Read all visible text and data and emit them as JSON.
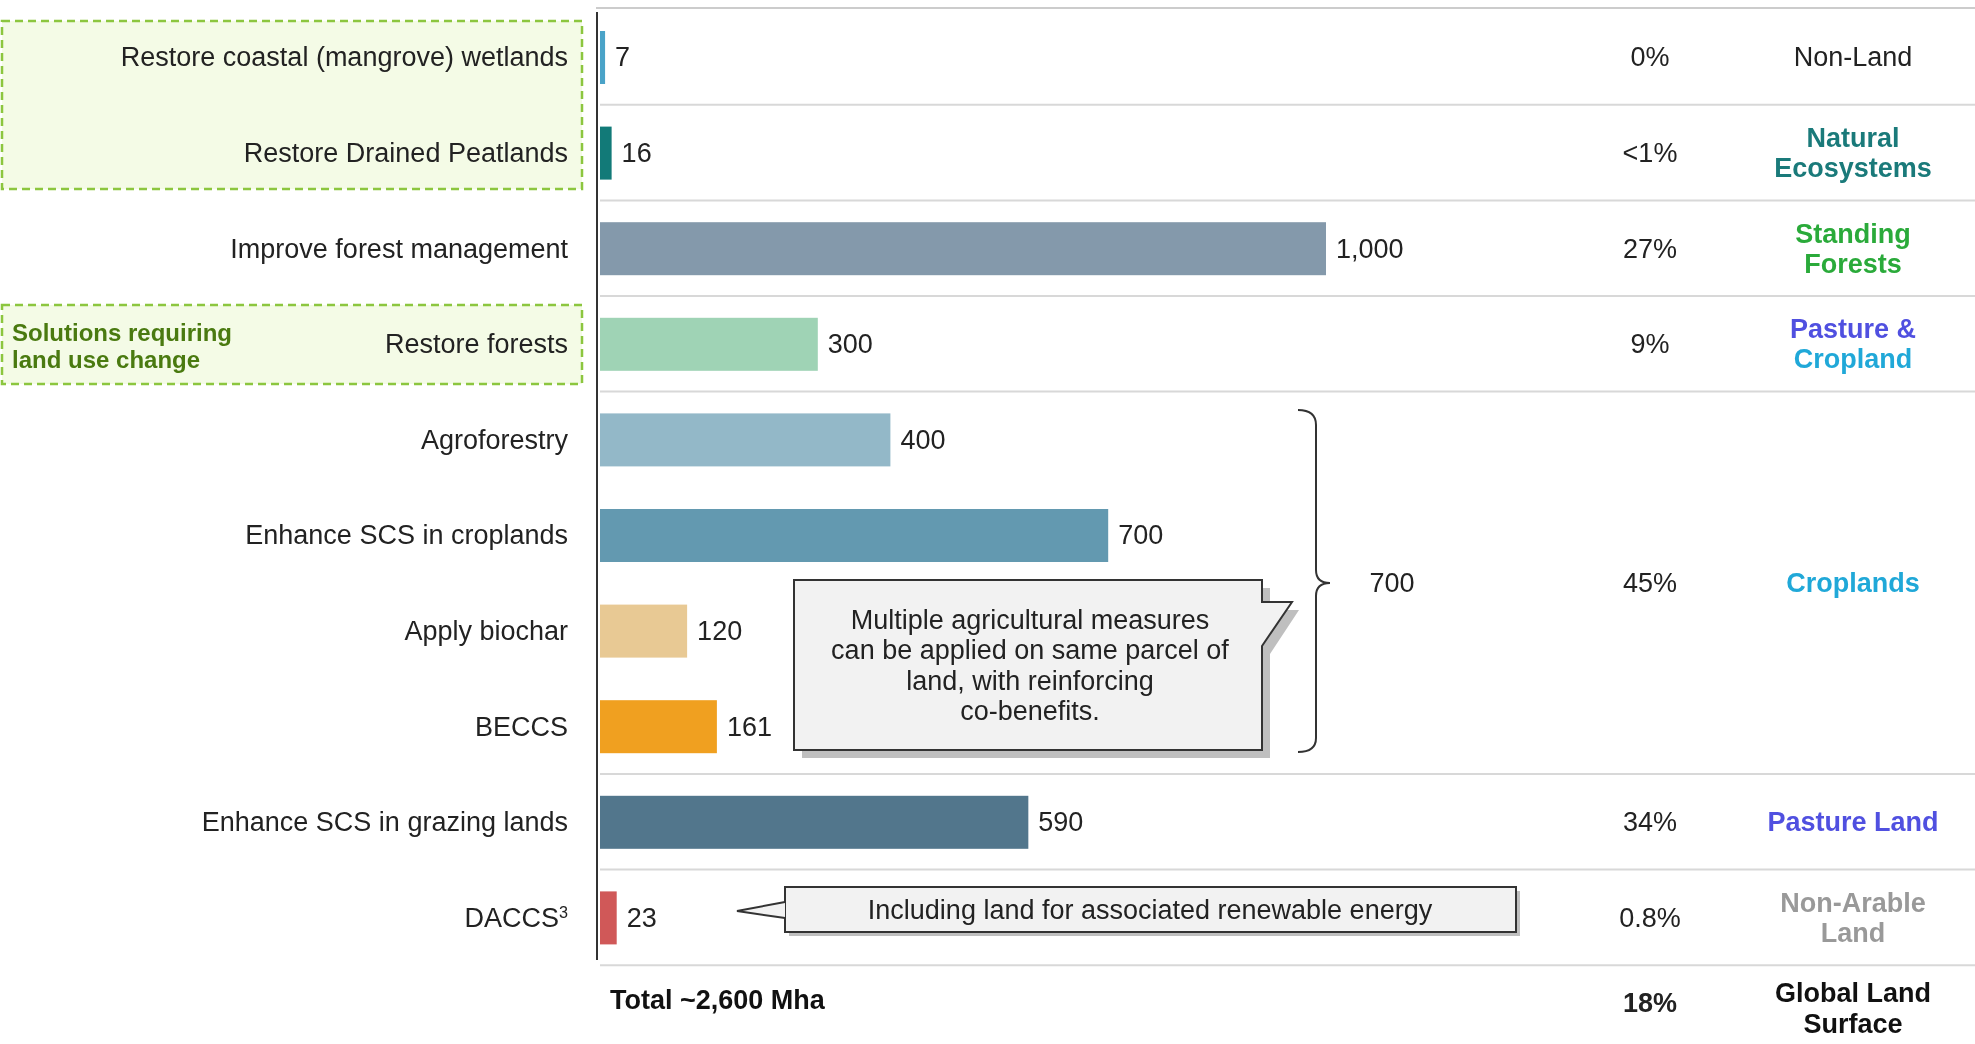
{
  "chart_data": {
    "type": "bar",
    "orientation": "horizontal",
    "tick_labels": "y",
    "data_labels": true,
    "categories": [
      "Restore coastal (mangrove) wetlands",
      "Restore Drained Peatlands",
      "Improve forest management",
      "Restore forests",
      "Agroforestry",
      "Enhance SCS in croplands",
      "Apply biochar",
      "BECCS",
      "Enhance SCS in grazing lands",
      "DACCS$^{3}$"
    ],
    "values": [
      7,
      16,
      1000,
      300,
      400,
      700,
      120,
      161,
      590,
      23
    ],
    "colors": [
      "#4aa3c8",
      "#127a78",
      "#8499ab",
      "#9fd3b5",
      "#93b8c8",
      "#6399b0",
      "#e8c994",
      "#f0a020",
      "#52768c",
      "#d05858"
    ],
    "value_labels": [
      "7",
      "16",
      "1,000",
      "300",
      "400",
      "700",
      "120",
      "161",
      "590",
      "23"
    ],
    "xlim": [
      0,
      1000
    ],
    "annotations": [
      "0%",
      "<1%",
      "27%",
      "9%",
      "45%",
      "34%",
      "0.8%",
      "18%",
      "Non-Land",
      "Natural Ecosystems",
      "Standing Forests",
      "Pasture & Cropland",
      "Croplands",
      "Pasture Land",
      "Non-Arable Land",
      "Global Land Surface",
      "Total ~2,600 Mha",
      "Solutions requiring land use change",
      "Multiple agricultural measures can be applied on same parcel of land, with reinforcing co-benefits.",
      "Including land for associated renewable energy",
      "700"
    ]
  }
}
